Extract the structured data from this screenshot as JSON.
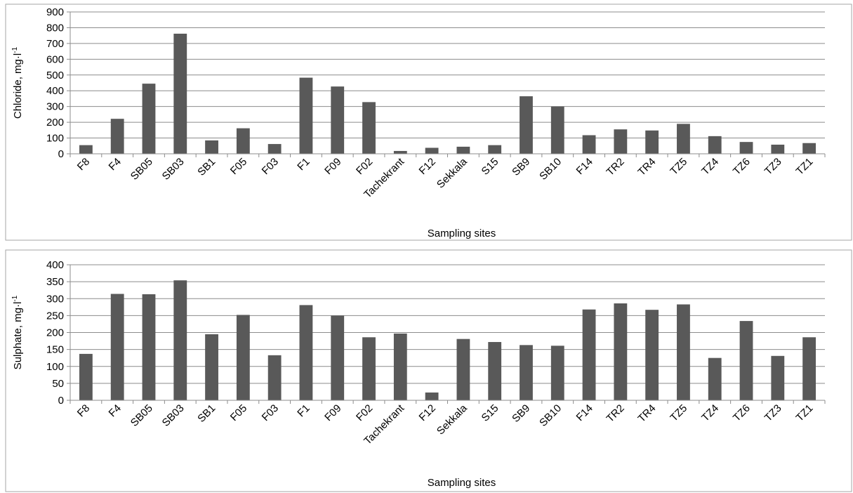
{
  "chart_data": [
    {
      "type": "bar",
      "categories": [
        "F8",
        "F4",
        "SB05",
        "SB03",
        "SB1",
        "F05",
        "F03",
        "F1",
        "F09",
        "F02",
        "Tachekrant",
        "F12",
        "Sekkala",
        "S15",
        "SB9",
        "SB10",
        "F14",
        "TR2",
        "TR4",
        "TZ5",
        "TZ4",
        "TZ6",
        "TZ3",
        "TZ1"
      ],
      "values": [
        55,
        222,
        445,
        762,
        85,
        162,
        62,
        483,
        427,
        328,
        18,
        38,
        45,
        55,
        365,
        300,
        118,
        155,
        148,
        190,
        112,
        75,
        58,
        68
      ],
      "xlabel": "Sampling sites",
      "ylabel_main": "Chloride, mg·l",
      "ylabel_sup": "-1",
      "ylim": [
        0,
        900
      ],
      "yticks": [
        "0",
        "100",
        "200",
        "300",
        "400",
        "500",
        "600",
        "700",
        "800",
        "900"
      ],
      "grid": true,
      "bar_color": "#595959"
    },
    {
      "type": "bar",
      "categories": [
        "F8",
        "F4",
        "SB05",
        "SB03",
        "SB1",
        "F05",
        "F03",
        "F1",
        "F09",
        "F02",
        "Tachekrant",
        "F12",
        "Sekkala",
        "S15",
        "SB9",
        "SB10",
        "F14",
        "TR2",
        "TR4",
        "TZ5",
        "TZ4",
        "TZ6",
        "TZ3",
        "TZ1"
      ],
      "values": [
        137,
        314,
        313,
        354,
        195,
        252,
        133,
        281,
        250,
        186,
        197,
        23,
        181,
        172,
        163,
        161,
        268,
        286,
        267,
        283,
        125,
        234,
        131,
        186
      ],
      "xlabel": "Sampling sites",
      "ylabel_main": "Sulphate, mg·l",
      "ylabel_sup": "-1",
      "ylim": [
        0,
        400
      ],
      "yticks": [
        "0",
        "50",
        "100",
        "150",
        "200",
        "250",
        "300",
        "350",
        "400"
      ],
      "grid": true,
      "bar_color": "#595959"
    }
  ]
}
